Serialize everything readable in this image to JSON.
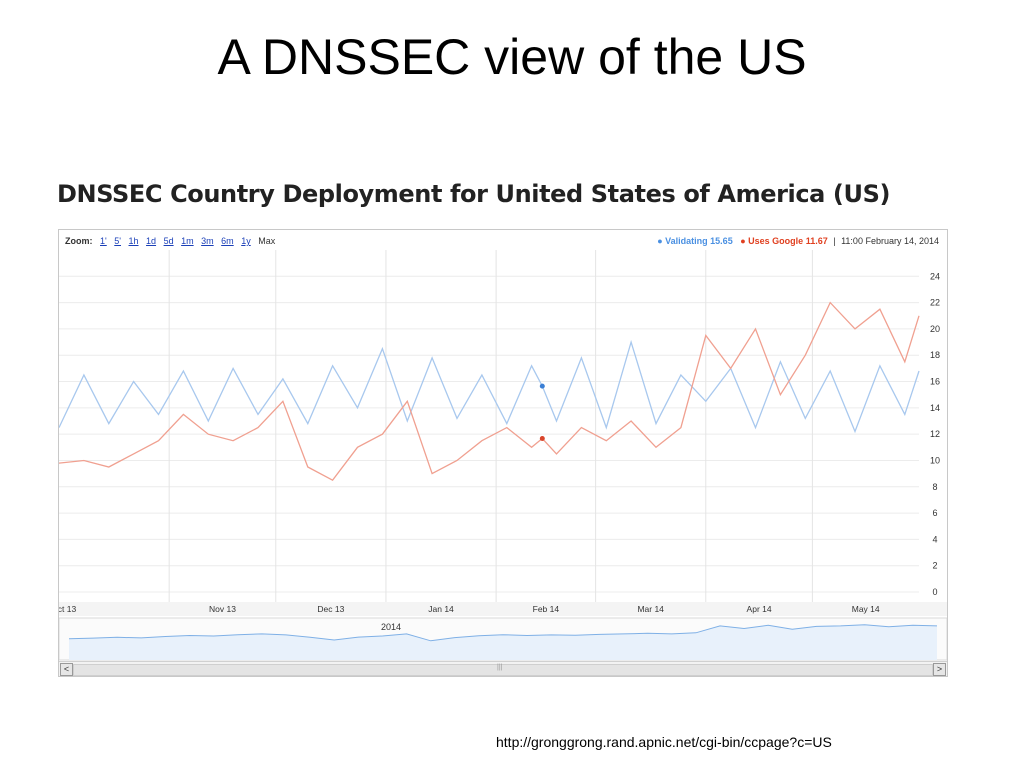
{
  "slide": {
    "title": "A DNSSEC view of the US",
    "source_url": "http://gronggrong.rand.apnic.net/cgi-bin/ccpage?c=US"
  },
  "chart": {
    "heading": "DNSSEC Country Deployment for United States of America (US)",
    "zoom_label": "Zoom:",
    "zoom_options": [
      "1'",
      "5'",
      "1h",
      "1d",
      "5d",
      "1m",
      "3m",
      "6m",
      "1y",
      "Max"
    ],
    "legend": {
      "validating_label": "Validating",
      "validating_value": "15.65",
      "google_label": "Uses Google",
      "google_value": "11.67",
      "separator": "|",
      "timestamp": "11:00 February 14, 2014"
    },
    "navigator_year_label": "2014",
    "nav_left": "<",
    "nav_right": ">",
    "nav_grip": "|||"
  },
  "chart_data": {
    "type": "line",
    "title": "DNSSEC Country Deployment for United States of America (US)",
    "x_start": "2013-10-01",
    "x_end": "2014-05-31",
    "x_tick_labels": [
      "ct 13",
      "Nov 13",
      "Dec 13",
      "Jan 14",
      "Feb 14",
      "Mar 14",
      "Apr 14",
      "May 14"
    ],
    "x_tick_dates": [
      "2013-10-01",
      "2013-11-01",
      "2013-12-01",
      "2014-01-01",
      "2014-02-01",
      "2014-03-01",
      "2014-04-01",
      "2014-05-01"
    ],
    "ylim": [
      0,
      26
    ],
    "y_ticks": [
      0,
      2,
      4,
      6,
      8,
      10,
      12,
      14,
      16,
      18,
      20,
      22,
      24
    ],
    "y_axis_side": "right",
    "grid": true,
    "legend_position": "top-right",
    "marker": {
      "date": "2014-02-14",
      "Validating": 15.65,
      "Uses Google": 11.67
    },
    "series": [
      {
        "name": "Validating",
        "color": "#a8c8ee",
        "marker_color": "#3a7fd5",
        "x": [
          "2013-10-01",
          "2013-10-08",
          "2013-10-15",
          "2013-10-22",
          "2013-10-29",
          "2013-11-05",
          "2013-11-12",
          "2013-11-19",
          "2013-11-26",
          "2013-12-03",
          "2013-12-10",
          "2013-12-17",
          "2013-12-24",
          "2013-12-31",
          "2014-01-07",
          "2014-01-14",
          "2014-01-21",
          "2014-01-28",
          "2014-02-04",
          "2014-02-11",
          "2014-02-14",
          "2014-02-18",
          "2014-02-25",
          "2014-03-04",
          "2014-03-11",
          "2014-03-18",
          "2014-03-25",
          "2014-04-01",
          "2014-04-08",
          "2014-04-15",
          "2014-04-22",
          "2014-04-29",
          "2014-05-06",
          "2014-05-13",
          "2014-05-20",
          "2014-05-27",
          "2014-05-31"
        ],
        "values": [
          12.5,
          16.5,
          12.8,
          16,
          13.5,
          16.8,
          13,
          17,
          13.5,
          16.2,
          12.8,
          17.2,
          14,
          18.5,
          13,
          17.8,
          13.2,
          16.5,
          12.8,
          17.2,
          15.65,
          13,
          17.8,
          12.5,
          19,
          12.8,
          16.5,
          14.5,
          17,
          12.5,
          17.5,
          13.2,
          16.8,
          12.2,
          17.2,
          13.5,
          16.8
        ]
      },
      {
        "name": "Uses Google",
        "color": "#f0a090",
        "marker_color": "#d9452b",
        "x": [
          "2013-10-01",
          "2013-10-08",
          "2013-10-15",
          "2013-10-22",
          "2013-10-29",
          "2013-11-05",
          "2013-11-12",
          "2013-11-19",
          "2013-11-26",
          "2013-12-03",
          "2013-12-10",
          "2013-12-17",
          "2013-12-24",
          "2013-12-31",
          "2014-01-07",
          "2014-01-14",
          "2014-01-21",
          "2014-01-28",
          "2014-02-04",
          "2014-02-11",
          "2014-02-14",
          "2014-02-18",
          "2014-02-25",
          "2014-03-04",
          "2014-03-11",
          "2014-03-18",
          "2014-03-25",
          "2014-04-01",
          "2014-04-08",
          "2014-04-15",
          "2014-04-22",
          "2014-04-29",
          "2014-05-06",
          "2014-05-13",
          "2014-05-20",
          "2014-05-27",
          "2014-05-31"
        ],
        "values": [
          9.8,
          10,
          9.5,
          10.5,
          11.5,
          13.5,
          12,
          11.5,
          12.5,
          14.5,
          9.5,
          8.5,
          11,
          12,
          14.5,
          9,
          10,
          11.5,
          12.5,
          11,
          11.67,
          10.5,
          12.5,
          11.5,
          13,
          11,
          12.5,
          19.5,
          17,
          20,
          15,
          18,
          22,
          20,
          21.5,
          17.5,
          21
        ]
      }
    ],
    "navigator": {
      "year_label": "2014",
      "values": [
        8,
        8.2,
        8.5,
        8.3,
        8.8,
        9.2,
        9,
        9.5,
        9.8,
        9.4,
        8.5,
        7.5,
        8.6,
        9,
        9.8,
        7.2,
        8.4,
        9.1,
        9.5,
        9.2,
        9.4,
        9.3,
        9.6,
        9.8,
        10,
        9.8,
        10.2,
        12.8,
        11.8,
        13,
        11.5,
        12.6,
        12.8,
        13.2,
        12.5,
        13,
        12.8
      ]
    }
  }
}
